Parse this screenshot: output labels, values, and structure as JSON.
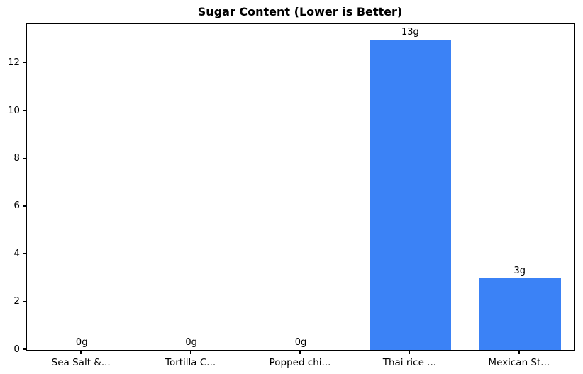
{
  "chart_data": {
    "type": "bar",
    "title": "Sugar Content (Lower is Better)",
    "categories": [
      "Sea Salt &...",
      "Tortilla C...",
      "Popped chi...",
      "Thai rice ...",
      "Mexican St..."
    ],
    "values": [
      0,
      0,
      0,
      13,
      3
    ],
    "bar_labels": [
      "0g",
      "0g",
      "0g",
      "13g",
      "3g"
    ],
    "xlabel": "",
    "ylabel": "",
    "ylim": [
      0,
      13.65
    ],
    "yticks": [
      0,
      2,
      4,
      6,
      8,
      10,
      12
    ],
    "ytick_labels": [
      "0",
      "2",
      "4",
      "6",
      "8",
      "10",
      "12"
    ],
    "bar_color": "#3b82f6",
    "axis_color": "#000000",
    "background_color": "#ffffff",
    "grid": false,
    "legend_position": "none",
    "bar_width_fraction": 0.75
  }
}
